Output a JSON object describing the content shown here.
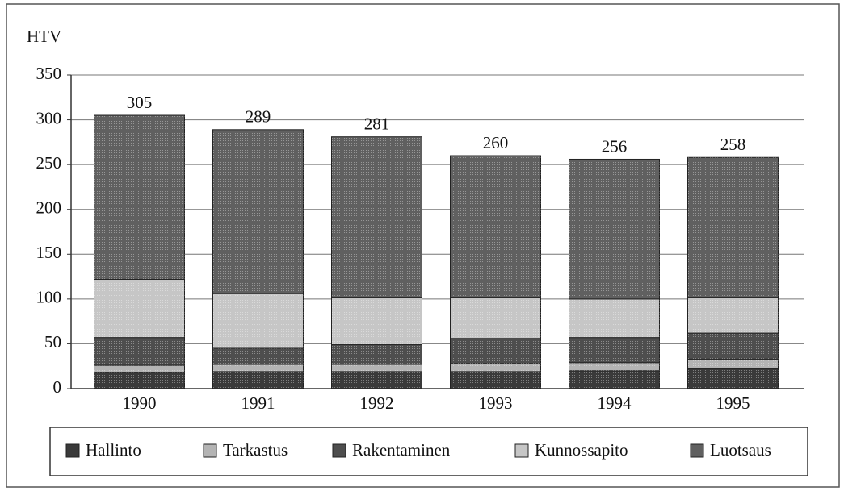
{
  "chart_data": {
    "type": "stacked_bar",
    "y_label": "HTV",
    "categories": [
      "1990",
      "1991",
      "1992",
      "1993",
      "1994",
      "1995"
    ],
    "series": [
      {
        "name": "Hallinto",
        "color": "#3a3a3a",
        "values": [
          18,
          19,
          19,
          19,
          20,
          22
        ]
      },
      {
        "name": "Tarkastus",
        "color": "#b4b4b4",
        "values": [
          8,
          8,
          8,
          9,
          9,
          11
        ]
      },
      {
        "name": "Rakentaminen",
        "color": "#4e4e4e",
        "values": [
          31,
          18,
          22,
          28,
          28,
          29
        ]
      },
      {
        "name": "Kunnossapito",
        "color": "#c6c6c6",
        "values": [
          65,
          61,
          53,
          46,
          43,
          40
        ]
      },
      {
        "name": "Luotsaus",
        "color": "#606060",
        "values": [
          183,
          183,
          179,
          158,
          156,
          156
        ]
      }
    ],
    "totals": [
      305,
      289,
      281,
      260,
      256,
      258
    ],
    "ylim": [
      0,
      350
    ],
    "yticks": [
      0,
      50,
      100,
      150,
      200,
      250,
      300,
      350
    ],
    "grid": true,
    "legend": "bottom"
  }
}
